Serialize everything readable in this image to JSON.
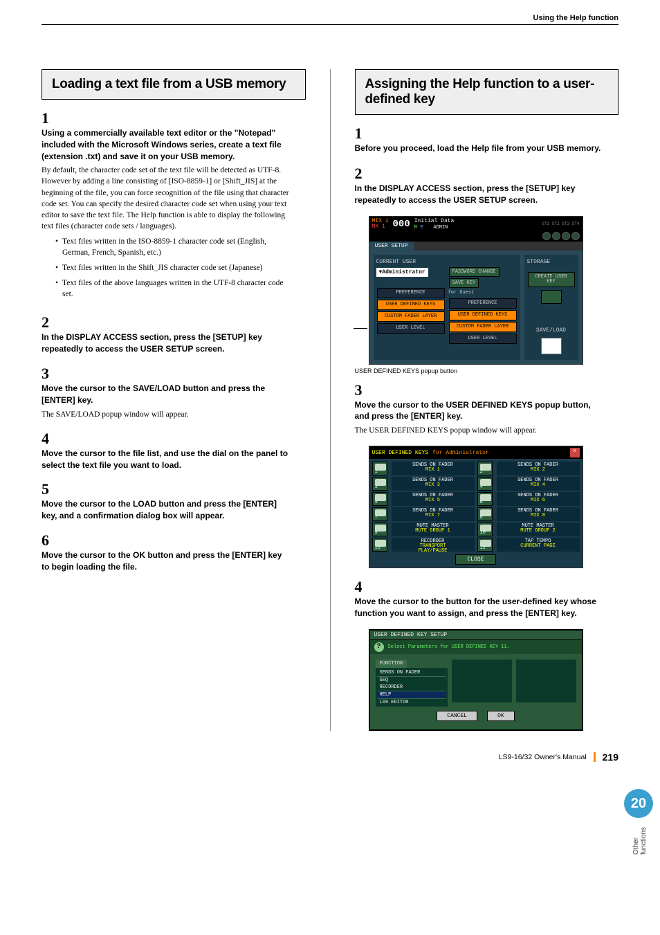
{
  "header": {
    "section": "Using the Help function"
  },
  "chapter": {
    "number": "20",
    "label": "Other functions"
  },
  "footer": {
    "manual": "LS9-16/32  Owner's Manual",
    "page": "219"
  },
  "colors": {
    "accent": "#3ba0d0",
    "orange": "#f80",
    "screenGreen": "#2a5a3a",
    "screenBlue": "#1a3a4a"
  },
  "left": {
    "title": "Loading a text file from a USB memory",
    "steps": [
      {
        "n": "1",
        "title": "Using a commercially available text editor or the \"Notepad\" included with the Microsoft Windows series, create a text file (extension .txt) and save it on your USB memory.",
        "text": "By default, the character code set of the text file will be detected as UTF-8. However by adding a line consisting of [ISO-8859-1] or [Shift_JIS] at the beginning of the file, you can force recognition of the file using that character code set. You can specify the desired character code set when using your text editor to save the text file. The Help function is able to display the following text files (character code sets / languages).",
        "bullets": [
          "Text files written in the ISO-8859-1 character code set (English, German, French, Spanish, etc.)",
          "Text files written in the Shift_JIS character code set (Japanese)",
          "Text files of the above languages written in the UTF-8 character code set."
        ]
      },
      {
        "n": "2",
        "title": "In the DISPLAY ACCESS section, press the [SETUP] key repeatedly to access the USER SETUP screen."
      },
      {
        "n": "3",
        "title": "Move the cursor to the SAVE/LOAD button and press the [ENTER] key.",
        "text": "The SAVE/LOAD popup window will appear."
      },
      {
        "n": "4",
        "title": "Move the cursor to the file list, and use the dial on the panel to select the text file you want to load."
      },
      {
        "n": "5",
        "title": "Move the cursor to the LOAD button and press the [ENTER] key, and a confirmation dialog box will appear."
      },
      {
        "n": "6",
        "title": "Move the cursor to the OK button and press the [ENTER] key to begin loading the file."
      }
    ]
  },
  "right": {
    "title": "Assigning the Help function to a user-defined key",
    "steps": [
      {
        "n": "1",
        "title": "Before you proceed, load the Help file from your USB memory."
      },
      {
        "n": "2",
        "title": "In the DISPLAY ACCESS section, press the [SETUP] key repeatedly to access the USER SETUP screen."
      },
      {
        "n": "3",
        "title": "Move the cursor to the USER DEFINED KEYS popup button, and press the [ENTER] key.",
        "text": "The USER DEFINED KEYS popup window will appear."
      },
      {
        "n": "4",
        "title": "Move the cursor to the button for the user-defined key whose function you want to assign, and press the [ENTER] key."
      }
    ],
    "ss1_caption": "USER DEFINED KEYS popup button"
  },
  "ss1": {
    "mix1": "MIX 1",
    "mx1": "MX 1",
    "num": "000",
    "initial": "Initial Data",
    "r": "R",
    "edit": "E",
    "admin": "ADMIN",
    "meters": [
      "ST1",
      "ST2",
      "ST3",
      "ST4"
    ],
    "tab": "USER SETUP",
    "current": "CURRENT USER",
    "storage": "STORAGE",
    "administrator": "▼Administrator",
    "password": "PASSWORD CHANGE",
    "savekey": "SAVE KEY",
    "create": "CREATE USER KEY",
    "guest": "for Guest",
    "buttons": [
      "PREFERENCE",
      "USER DEFINED KEYS",
      "CUSTOM FADER LAYER",
      "USER LEVEL"
    ],
    "saveload": "SAVE/LOAD"
  },
  "ss2": {
    "title_l": "USER DEFINED KEYS",
    "title_r": "for Administrator",
    "close_x": "×",
    "rows": [
      {
        "k1": "1",
        "l1a": "SENDS ON FADER",
        "l1b": "MIX 1",
        "k2": "2",
        "l2a": "SENDS ON FADER",
        "l2b": "MIX 2"
      },
      {
        "k1": "3",
        "l1a": "SENDS ON FADER",
        "l1b": "MIX 3",
        "k2": "4",
        "l2a": "SENDS ON FADER",
        "l2b": "MIX 4"
      },
      {
        "k1": "5",
        "l1a": "SENDS ON FADER",
        "l1b": "MIX 5",
        "k2": "6",
        "l2a": "SENDS ON FADER",
        "l2b": "MIX 6"
      },
      {
        "k1": "7",
        "l1a": "SENDS ON FADER",
        "l1b": "MIX 7",
        "k2": "8",
        "l2a": "SENDS ON FADER",
        "l2b": "MIX 8"
      },
      {
        "k1": "9",
        "l1a": "MUTE MASTER",
        "l1b": "MUTE GROUP 1",
        "k2": "10",
        "l2a": "MUTE MASTER",
        "l2b": "MUTE GROUP 2"
      },
      {
        "k1": "11",
        "l1a": "RECORDER",
        "l1b": "TRANSPORT",
        "l1c": "PLAY/PAUSE",
        "k2": "12",
        "l2a": "TAP TEMPO",
        "l2b": "CURRENT PAGE"
      }
    ],
    "close": "CLOSE"
  },
  "ss3": {
    "title": "USER DEFINED KEY SETUP",
    "hint": "Select Parameters for USER DEFINED KEY 11.",
    "func": "FUNCTION",
    "items": [
      "SENDS ON FADER",
      "GEQ",
      "RECORDER",
      "HELP",
      "LS9 EDITOR"
    ],
    "cancel": "CANCEL",
    "ok": "OK"
  }
}
